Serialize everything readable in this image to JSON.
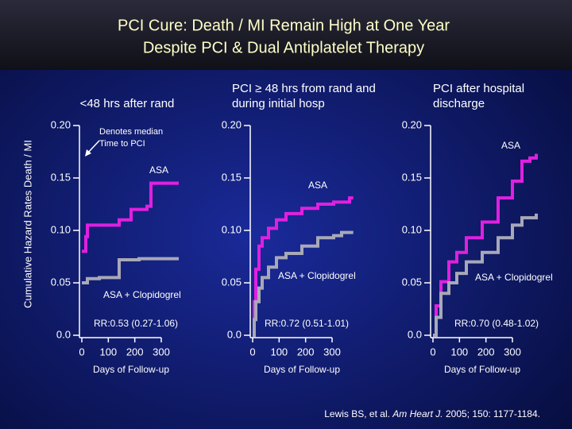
{
  "header": {
    "title_lines": [
      "PCI Cure: Death / MI Remain High at One Year",
      "Despite PCI & Dual Antiplatelet Therapy"
    ]
  },
  "chart_data": [
    {
      "type": "line",
      "title_lines": [
        "<48 hrs after rand"
      ],
      "ylabel": "Cumulative Hazard Rates Death / MI",
      "xlabel": "Days of Follow-up",
      "annotations": [
        "Denotes median",
        "Time to PCI",
        "RR:0.53 (0.27-1.06)"
      ],
      "xlim": [
        0,
        390
      ],
      "xticks": [
        0,
        100,
        200,
        300
      ],
      "ylim": [
        0,
        0.2
      ],
      "yticks": [
        {
          "value": 0,
          "label": "0.0"
        },
        0.05,
        {
          "value": 0.1,
          "label": "0.10"
        },
        0.15,
        {
          "value": 0.2,
          "label": "0.20"
        }
      ],
      "x": [
        0,
        15,
        21,
        66,
        141,
        186,
        216,
        246,
        261,
        366
      ],
      "series": [
        {
          "name": "ASA",
          "color": "#e020e0",
          "values": [
            0.08,
            0.094,
            0.105,
            0.105,
            0.11,
            0.12,
            0.12,
            0.123,
            0.145,
            0.145
          ]
        },
        {
          "name": "ASA + Clopidogrel",
          "color": "#a8a8b8",
          "values": [
            0.05,
            0.05,
            0.054,
            0.055,
            0.072,
            0.072,
            0.073,
            0.073,
            0.073,
            0.073
          ]
        }
      ]
    },
    {
      "type": "line",
      "title_lines": [
        "PCI ≥ 48 hrs from rand and",
        "during initial hosp"
      ],
      "xlabel": "Days of Follow-up",
      "annotations": [
        "RR:0.72 (0.51-1.01)"
      ],
      "xlim": [
        0,
        390
      ],
      "xticks": [
        0,
        100,
        200,
        300
      ],
      "ylim": [
        0,
        0.2
      ],
      "yticks": [
        {
          "value": 0,
          "label": "0.0"
        },
        0.05,
        {
          "value": 0.1,
          "label": "0.10"
        },
        0.15,
        {
          "value": 0.2,
          "label": "0.20"
        }
      ],
      "x": [
        0,
        6,
        12,
        24,
        36,
        60,
        90,
        126,
        186,
        246,
        306,
        336,
        366,
        380
      ],
      "series": [
        {
          "name": "ASA",
          "color": "#e020e0",
          "values": [
            0,
            0.032,
            0.063,
            0.085,
            0.093,
            0.102,
            0.11,
            0.116,
            0.121,
            0.125,
            0.127,
            0.127,
            0.131,
            0.131
          ]
        },
        {
          "name": "ASA + Clopidogrel",
          "color": "#a8a8b8",
          "values": [
            0,
            0.015,
            0.032,
            0.045,
            0.055,
            0.065,
            0.074,
            0.078,
            0.085,
            0.093,
            0.095,
            0.098,
            0.098,
            0.098
          ]
        }
      ]
    },
    {
      "type": "line",
      "title_lines": [
        "PCI after hospital",
        "discharge"
      ],
      "xlabel": "Days of Follow-up",
      "annotations": [
        "RR:0.70 (0.48-1.02)"
      ],
      "xlim": [
        0,
        390
      ],
      "xticks": [
        0,
        100,
        200,
        300
      ],
      "ylim": [
        0,
        0.2
      ],
      "yticks": [
        {
          "value": 0,
          "label": "0.0"
        },
        0.05,
        {
          "value": 0.1,
          "label": "0.10"
        },
        0.15,
        {
          "value": 0.2,
          "label": "0.20"
        }
      ],
      "x": [
        0,
        12,
        30,
        60,
        90,
        126,
        186,
        246,
        300,
        336,
        366,
        390
      ],
      "series": [
        {
          "name": "ASA",
          "color": "#e020e0",
          "values": [
            0,
            0.028,
            0.051,
            0.07,
            0.079,
            0.093,
            0.108,
            0.131,
            0.147,
            0.166,
            0.169,
            0.173
          ]
        },
        {
          "name": "ASA + Clopidogrel",
          "color": "#a8a8b8",
          "values": [
            0,
            0.017,
            0.04,
            0.05,
            0.059,
            0.07,
            0.079,
            0.093,
            0.105,
            0.112,
            0.112,
            0.116
          ]
        }
      ]
    }
  ],
  "footer": {
    "authors": "Lewis BS, et al.",
    "journal": "Am Heart J.",
    "details": "2005; 150: 1177-1184."
  }
}
